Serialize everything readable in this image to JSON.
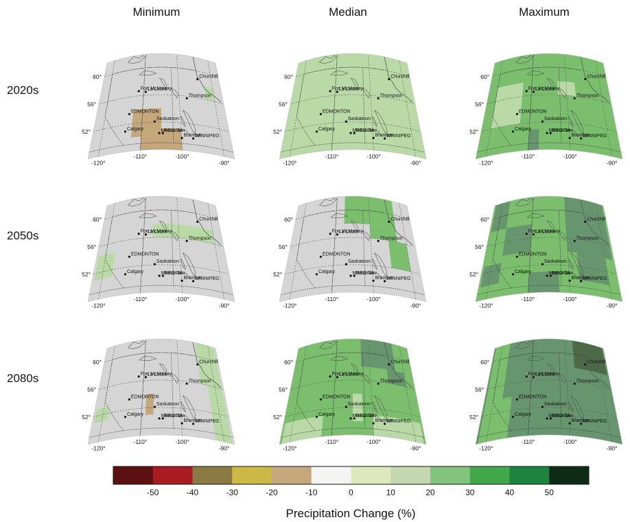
{
  "columns": [
    "Minimum",
    "Median",
    "Maximum"
  ],
  "rows": [
    "2020s",
    "2050s",
    "2080s"
  ],
  "cities": [
    {
      "name": "Fort McMurray",
      "lon": -111.4,
      "lat": 56.7
    },
    {
      "name": "La Loche",
      "lon": -109.4,
      "lat": 56.5
    },
    {
      "name": "Churchill",
      "lon": -94.2,
      "lat": 58.8
    },
    {
      "name": "Thompson",
      "lon": -97.9,
      "lat": 55.7
    },
    {
      "name": "EDMONTON",
      "lon": -113.5,
      "lat": 53.5
    },
    {
      "name": "Saskatoon",
      "lon": -106.7,
      "lat": 52.1
    },
    {
      "name": "Calgary",
      "lon": -114.1,
      "lat": 51.0
    },
    {
      "name": "REGINA",
      "lon": -104.6,
      "lat": 50.4
    },
    {
      "name": "Moose Jaw",
      "lon": -105.5,
      "lat": 50.4
    },
    {
      "name": "Brandon",
      "lon": -99.9,
      "lat": 49.8
    },
    {
      "name": "WINNIPEG",
      "lon": -97.1,
      "lat": 49.9
    }
  ],
  "lat_labels": [
    "60°",
    "56°",
    "52°"
  ],
  "lon_labels": [
    "-120°",
    "-110°",
    "-100°",
    "-90°"
  ],
  "panels": [
    {
      "row": 0,
      "col": 0,
      "base": "grey",
      "blocks": [
        {
          "lon": [
            -112.5,
            -105
          ],
          "lat": [
            50,
            54
          ],
          "cls": "-20"
        },
        {
          "lon": [
            -110,
            -102.5
          ],
          "lat": [
            48,
            50
          ],
          "cls": "-20"
        },
        {
          "lon": [
            -105,
            -100
          ],
          "lat": [
            48,
            51
          ],
          "cls": "-20"
        },
        {
          "lon": [
            -92.5,
            -90
          ],
          "lat": [
            56,
            58
          ],
          "cls": "20"
        }
      ]
    },
    {
      "row": 0,
      "col": 1,
      "base": "20",
      "blocks": []
    },
    {
      "row": 0,
      "col": 2,
      "base": "30",
      "blocks": [
        {
          "lon": [
            -120,
            -112.5
          ],
          "lat": [
            52,
            58
          ],
          "cls": "20"
        },
        {
          "lon": [
            -102.5,
            -97.5
          ],
          "lat": [
            56,
            58
          ],
          "cls": "20"
        },
        {
          "lon": [
            -110,
            -107.5
          ],
          "lat": [
            48,
            51
          ],
          "cls": "40"
        }
      ]
    },
    {
      "row": 1,
      "col": 0,
      "base": "grey",
      "blocks": [
        {
          "lon": [
            -107.5,
            -90
          ],
          "lat": [
            56,
            58
          ],
          "cls": "20"
        },
        {
          "lon": [
            -122,
            -117.5
          ],
          "lat": [
            51,
            54.5
          ],
          "cls": "20"
        }
      ]
    },
    {
      "row": 1,
      "col": 1,
      "base": "grey",
      "blocks": [
        {
          "lon": [
            -107.5,
            -92.5
          ],
          "lat": [
            58,
            62
          ],
          "cls": "30"
        },
        {
          "lon": [
            -100,
            -92.5
          ],
          "lat": [
            56,
            58
          ],
          "cls": "30"
        },
        {
          "lon": [
            -95,
            -90
          ],
          "lat": [
            52,
            56
          ],
          "cls": "30"
        }
      ]
    },
    {
      "row": 1,
      "col": 2,
      "base": "30",
      "blocks": [
        {
          "lon": [
            -122,
            -117.5
          ],
          "lat": [
            58,
            62
          ],
          "cls": "40"
        },
        {
          "lon": [
            -117.5,
            -110
          ],
          "lat": [
            54,
            58
          ],
          "cls": "40"
        },
        {
          "lon": [
            -100,
            -88
          ],
          "lat": [
            54,
            62
          ],
          "cls": "40"
        },
        {
          "lon": [
            -97.5,
            -90
          ],
          "lat": [
            50,
            54
          ],
          "cls": "40"
        },
        {
          "lon": [
            -110,
            -102.5
          ],
          "lat": [
            48,
            51
          ],
          "cls": "40"
        },
        {
          "lon": [
            -122,
            -117.5
          ],
          "lat": [
            50,
            53
          ],
          "cls": "40"
        }
      ]
    },
    {
      "row": 2,
      "col": 0,
      "base": "grey",
      "blocks": [
        {
          "lon": [
            -109,
            -107
          ],
          "lat": [
            51,
            54
          ],
          "cls": "-20"
        },
        {
          "lon": [
            -94,
            -88
          ],
          "lat": [
            56,
            62
          ],
          "cls": "20"
        },
        {
          "lon": [
            -92,
            -88
          ],
          "lat": [
            48,
            56
          ],
          "cls": "20"
        },
        {
          "lon": [
            -122,
            -118.5
          ],
          "lat": [
            51,
            53
          ],
          "cls": "20"
        }
      ]
    },
    {
      "row": 2,
      "col": 1,
      "base": "30",
      "blocks": [
        {
          "lon": [
            -102.5,
            -92.5
          ],
          "lat": [
            58,
            62
          ],
          "cls": "40"
        },
        {
          "lon": [
            -95,
            -90
          ],
          "lat": [
            56,
            58
          ],
          "cls": "40"
        },
        {
          "lon": [
            -122,
            -112.5
          ],
          "lat": [
            48,
            51
          ],
          "cls": "20"
        },
        {
          "lon": [
            -105,
            -102.5
          ],
          "lat": [
            50,
            54
          ],
          "cls": "20"
        },
        {
          "lon": [
            -100,
            -88
          ],
          "lat": [
            48,
            51
          ],
          "cls": "20"
        }
      ]
    },
    {
      "row": 2,
      "col": 2,
      "base": "40",
      "blocks": [
        {
          "lon": [
            -97.5,
            -88
          ],
          "lat": [
            58,
            62
          ],
          "cls": "50"
        },
        {
          "lon": [
            -122,
            -117.5
          ],
          "lat": [
            54,
            62
          ],
          "cls": "30"
        },
        {
          "lon": [
            -122,
            -115
          ],
          "lat": [
            48,
            54
          ],
          "cls": "30"
        }
      ]
    }
  ],
  "colors": {
    "grey": "#d6d5d5",
    "-20": "#c4a77a",
    "20": "#b9d9a6",
    "30": "#7bbf6e",
    "40": "#67956e",
    "50": "#4d6a47",
    "borders": "#333333",
    "coast": "#555555"
  },
  "legend": {
    "swatches": [
      "#5c1012",
      "#a81c22",
      "#8c7a44",
      "#ccb845",
      "#c4a77a",
      "#f4f4f3",
      "#dde9bd",
      "#c3d7b0",
      "#82c47c",
      "#42a74a",
      "#1c843f",
      "#0e2b17"
    ],
    "ticks": [
      "-50",
      "-40",
      "-30",
      "-20",
      "-10",
      "0",
      "10",
      "20",
      "30",
      "40",
      "50"
    ],
    "title": "Precipitation Change (%)"
  }
}
